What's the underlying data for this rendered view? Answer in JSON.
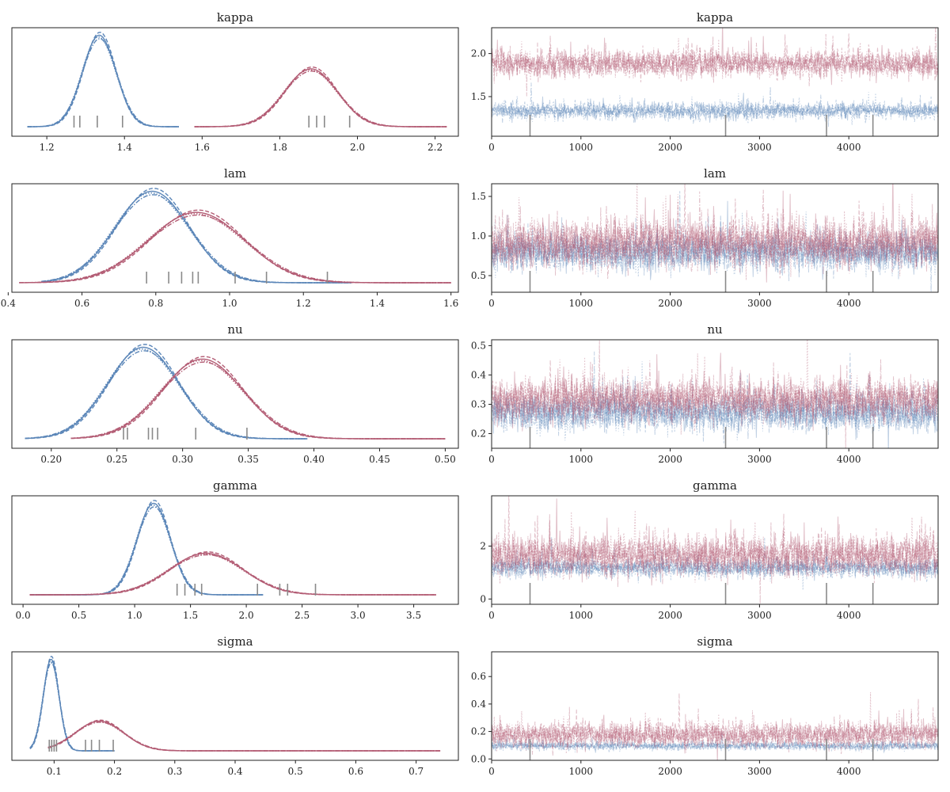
{
  "colors": {
    "blue": "#5b86b8",
    "red": "#b35c74",
    "rug": "#8a8a8a",
    "frame": "#222222"
  },
  "chart_data": [
    {
      "type": "line",
      "subtype": "kde",
      "title": "kappa",
      "xlim": [
        1.11,
        2.26
      ],
      "xticks": [
        1.2,
        1.4,
        1.6,
        1.8,
        2.0,
        2.2
      ],
      "xtick_labels": [
        "1.2",
        "1.4",
        "1.6",
        "1.8",
        "2.0",
        "2.2"
      ],
      "series": [
        {
          "color": "blue",
          "mean": 1.335,
          "sd": 0.043,
          "xmin": 1.15,
          "xmax": 1.54
        },
        {
          "color": "red",
          "mean": 1.88,
          "sd": 0.068,
          "xmin": 1.58,
          "xmax": 2.23
        }
      ],
      "rug": [
        1.27,
        1.285,
        1.33,
        1.395,
        1.875,
        1.895,
        1.915,
        1.98
      ]
    },
    {
      "type": "line",
      "subtype": "trace",
      "title": "kappa",
      "xlim": [
        0,
        5000
      ],
      "ylim": [
        1.04,
        2.3
      ],
      "xticks": [
        0,
        1000,
        2000,
        3000,
        4000
      ],
      "xtick_labels": [
        "0",
        "1000",
        "2000",
        "3000",
        "4000"
      ],
      "yticks": [
        1.5,
        2.0
      ],
      "ytick_labels": [
        "1.5",
        "2.0"
      ],
      "series": [
        {
          "color": "blue",
          "mean": 1.335,
          "sd": 0.043
        },
        {
          "color": "red",
          "mean": 1.88,
          "sd": 0.068
        }
      ],
      "divergences": [
        430,
        2620,
        3750,
        4270
      ]
    },
    {
      "type": "line",
      "subtype": "kde",
      "title": "lam",
      "xlim": [
        0.41,
        1.62
      ],
      "xticks": [
        0.4,
        0.6,
        0.8,
        1.0,
        1.2,
        1.4,
        1.6
      ],
      "xtick_labels": [
        "0.4",
        "0.6",
        "0.8",
        "1.0",
        "1.2",
        "1.4",
        "1.6"
      ],
      "series": [
        {
          "color": "blue",
          "mean": 0.79,
          "sd": 0.1,
          "xmin": 0.49,
          "xmax": 1.33
        },
        {
          "color": "red",
          "mean": 0.91,
          "sd": 0.13,
          "xmin": 0.43,
          "xmax": 1.6
        }
      ],
      "rug": [
        0.775,
        0.835,
        0.87,
        0.9,
        0.915,
        1.015,
        1.1,
        1.265
      ]
    },
    {
      "type": "line",
      "subtype": "trace",
      "title": "lam",
      "xlim": [
        0,
        5000
      ],
      "ylim": [
        0.29,
        1.66
      ],
      "xticks": [
        0,
        1000,
        2000,
        3000,
        4000
      ],
      "xtick_labels": [
        "0",
        "1000",
        "2000",
        "3000",
        "4000"
      ],
      "yticks": [
        0.5,
        1.0,
        1.5
      ],
      "ytick_labels": [
        "0.5",
        "1.0",
        "1.5"
      ],
      "series": [
        {
          "color": "blue",
          "mean": 0.79,
          "sd": 0.1
        },
        {
          "color": "red",
          "mean": 0.91,
          "sd": 0.13
        }
      ],
      "divergences": [
        430,
        2620,
        3750,
        4270
      ]
    },
    {
      "type": "line",
      "subtype": "kde",
      "title": "nu",
      "xlim": [
        0.17,
        0.51
      ],
      "xticks": [
        0.2,
        0.25,
        0.3,
        0.35,
        0.4,
        0.45,
        0.5
      ],
      "xtick_labels": [
        "0.20",
        "0.25",
        "0.30",
        "0.35",
        "0.40",
        "0.45",
        "0.50"
      ],
      "series": [
        {
          "color": "blue",
          "mean": 0.27,
          "sd": 0.027,
          "xmin": 0.18,
          "xmax": 0.395
        },
        {
          "color": "red",
          "mean": 0.315,
          "sd": 0.031,
          "xmin": 0.215,
          "xmax": 0.5
        }
      ],
      "rug": [
        0.255,
        0.258,
        0.274,
        0.277,
        0.281,
        0.31,
        0.349
      ]
    },
    {
      "type": "line",
      "subtype": "trace",
      "title": "nu",
      "xlim": [
        0,
        5000
      ],
      "ylim": [
        0.15,
        0.52
      ],
      "xticks": [
        0,
        1000,
        2000,
        3000,
        4000
      ],
      "xtick_labels": [
        "0",
        "1000",
        "2000",
        "3000",
        "4000"
      ],
      "yticks": [
        0.2,
        0.3,
        0.4,
        0.5
      ],
      "ytick_labels": [
        "0.2",
        "0.3",
        "0.4",
        "0.5"
      ],
      "series": [
        {
          "color": "blue",
          "mean": 0.27,
          "sd": 0.027
        },
        {
          "color": "red",
          "mean": 0.315,
          "sd": 0.031
        }
      ],
      "divergences": [
        430,
        2620,
        3750,
        4270
      ]
    },
    {
      "type": "line",
      "subtype": "kde",
      "title": "gamma",
      "xlim": [
        -0.1,
        3.9
      ],
      "xticks": [
        0,
        0.5,
        1.0,
        1.5,
        2.0,
        2.5,
        3.0,
        3.5
      ],
      "xtick_labels": [
        "0.0",
        "0.5",
        "1.0",
        "1.5",
        "2.0",
        "2.5",
        "3.0",
        "3.5"
      ],
      "series": [
        {
          "color": "blue",
          "mean": 1.17,
          "sd": 0.15,
          "xmin": 0.06,
          "xmax": 2.15
        },
        {
          "color": "red",
          "mean": 1.64,
          "sd": 0.33,
          "xmin": 0.06,
          "xmax": 3.7
        }
      ],
      "rug": [
        1.38,
        1.45,
        1.54,
        1.6,
        2.1,
        2.3,
        2.37,
        2.62
      ]
    },
    {
      "type": "line",
      "subtype": "trace",
      "title": "gamma",
      "xlim": [
        0,
        5000
      ],
      "ylim": [
        -0.2,
        3.9
      ],
      "xticks": [
        0,
        1000,
        2000,
        3000,
        4000
      ],
      "xtick_labels": [
        "0",
        "1000",
        "2000",
        "3000",
        "4000"
      ],
      "yticks": [
        0,
        2
      ],
      "ytick_labels": [
        "0",
        "2"
      ],
      "series": [
        {
          "color": "blue",
          "mean": 1.17,
          "sd": 0.15
        },
        {
          "color": "red",
          "mean": 1.64,
          "sd": 0.33
        }
      ],
      "divergences": [
        430,
        2620,
        3750,
        4270
      ]
    },
    {
      "type": "line",
      "subtype": "kde",
      "title": "sigma",
      "xlim": [
        0.03,
        0.77
      ],
      "xticks": [
        0.1,
        0.2,
        0.3,
        0.4,
        0.5,
        0.6,
        0.7
      ],
      "xtick_labels": [
        "0.1",
        "0.2",
        "0.3",
        "0.4",
        "0.5",
        "0.6",
        "0.7"
      ],
      "series": [
        {
          "color": "blue",
          "mean": 0.095,
          "sd": 0.013,
          "xmin": 0.06,
          "xmax": 0.2
        },
        {
          "color": "red",
          "mean": 0.175,
          "sd": 0.04,
          "xmin": 0.09,
          "xmax": 0.74
        }
      ],
      "rug": [
        0.092,
        0.096,
        0.1,
        0.104,
        0.152,
        0.162,
        0.175,
        0.198
      ]
    },
    {
      "type": "line",
      "subtype": "trace",
      "title": "sigma",
      "xlim": [
        0,
        5000
      ],
      "ylim": [
        -0.01,
        0.78
      ],
      "xticks": [
        0,
        1000,
        2000,
        3000,
        4000
      ],
      "xtick_labels": [
        "0",
        "1000",
        "2000",
        "3000",
        "4000"
      ],
      "yticks": [
        0.0,
        0.2,
        0.4,
        0.6
      ],
      "ytick_labels": [
        "0.0",
        "0.2",
        "0.4",
        "0.6"
      ],
      "series": [
        {
          "color": "blue",
          "mean": 0.095,
          "sd": 0.013
        },
        {
          "color": "red",
          "mean": 0.175,
          "sd": 0.04
        }
      ],
      "divergences": [
        430,
        2620,
        3750,
        4270
      ]
    }
  ]
}
